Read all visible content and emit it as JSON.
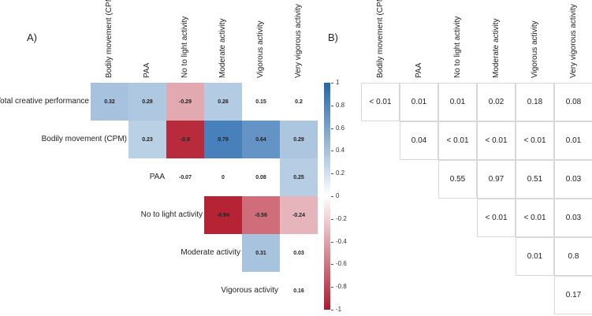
{
  "chart_data": [
    {
      "type": "heatmap",
      "panel": "A)",
      "columns": [
        "Bodily movement (CPM)",
        "PAA",
        "No to light activity",
        "Moderate activity",
        "Vigorous activity",
        "Very vigorous activity"
      ],
      "rows": [
        "Total creative performance",
        "Bodily movement (CPM)",
        "PAA",
        "No to light activity",
        "Moderate activity",
        "Vigorous activity"
      ],
      "values": [
        [
          0.32,
          0.28,
          -0.29,
          0.26,
          0.15,
          0.2
        ],
        [
          null,
          0.23,
          -0.9,
          0.79,
          0.64,
          0.29
        ],
        [
          null,
          null,
          -0.07,
          0,
          0.08,
          0.25
        ],
        [
          null,
          null,
          null,
          -0.94,
          -0.56,
          -0.24
        ],
        [
          null,
          null,
          null,
          null,
          0.31,
          0.03
        ],
        [
          null,
          null,
          null,
          null,
          null,
          0.16
        ]
      ],
      "significant": [
        [
          true,
          true,
          true,
          true,
          false,
          false
        ],
        [
          null,
          true,
          true,
          true,
          true,
          true
        ],
        [
          null,
          null,
          false,
          false,
          false,
          true
        ],
        [
          null,
          null,
          null,
          true,
          true,
          true
        ],
        [
          null,
          null,
          null,
          null,
          true,
          false
        ],
        [
          null,
          null,
          null,
          null,
          null,
          false
        ]
      ],
      "colorbar": {
        "ticks": [
          "1",
          "0.8",
          "0.6",
          "0.4",
          "0.2",
          "0",
          "-0.2",
          "-0.4",
          "-0.6",
          "-0.8",
          "-1"
        ],
        "range": [
          -1,
          1
        ],
        "low_color": "#b2182b",
        "mid_color": "#ffffff",
        "high_color": "#2166ac"
      }
    },
    {
      "type": "table",
      "panel": "B)",
      "columns": [
        "Bodily movement (CPM)",
        "PAA",
        "No to light activity",
        "Moderate activity",
        "Vigorous activity",
        "Very vigorous activity"
      ],
      "values": [
        [
          "< 0.01",
          "0.01",
          "0.01",
          "0.02",
          "0.18",
          "0.08"
        ],
        [
          null,
          "0.04",
          "< 0.01",
          "< 0.01",
          "< 0.01",
          "0.01"
        ],
        [
          null,
          null,
          "0.55",
          "0.97",
          "0.51",
          "0.03"
        ],
        [
          null,
          null,
          null,
          "< 0.01",
          "< 0.01",
          "0.03"
        ],
        [
          null,
          null,
          null,
          null,
          "0.01",
          "0.8"
        ],
        [
          null,
          null,
          null,
          null,
          null,
          "0.17"
        ]
      ]
    }
  ]
}
